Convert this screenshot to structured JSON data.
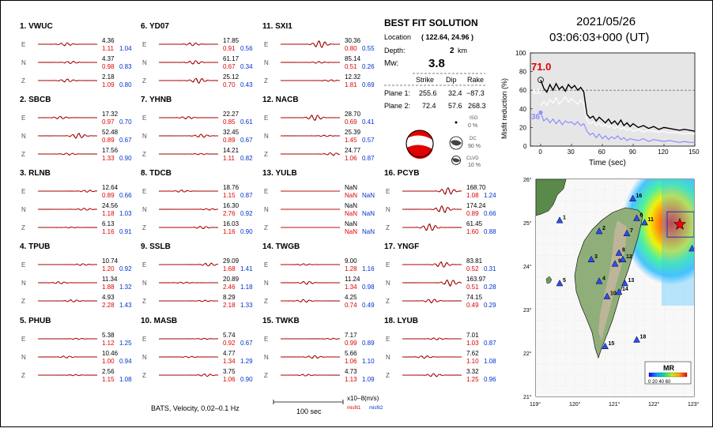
{
  "stations": [
    {
      "idx": "1.",
      "name": "VWUC",
      "rows": [
        {
          "amp": "4.36",
          "m1": "1.11",
          "m2": "1.04"
        },
        {
          "amp": "4.37",
          "m1": "0.98",
          "m2": "0.83"
        },
        {
          "amp": "2.18",
          "m1": "1.09",
          "m2": "0.80"
        }
      ]
    },
    {
      "idx": "2.",
      "name": "SBCB",
      "rows": [
        {
          "amp": "17.32",
          "m1": "0.97",
          "m2": "0.70"
        },
        {
          "amp": "52.48",
          "m1": "0.89",
          "m2": "0.67"
        },
        {
          "amp": "17.56",
          "m1": "1.33",
          "m2": "0.90"
        }
      ]
    },
    {
      "idx": "3.",
      "name": "RLNB",
      "rows": [
        {
          "amp": "12.64",
          "m1": "0.89",
          "m2": "0.66"
        },
        {
          "amp": "24.56",
          "m1": "1.18",
          "m2": "1.03"
        },
        {
          "amp": "6.13",
          "m1": "1.16",
          "m2": "0.91"
        }
      ]
    },
    {
      "idx": "4.",
      "name": "TPUB",
      "rows": [
        {
          "amp": "10.74",
          "m1": "1.20",
          "m2": "0.92"
        },
        {
          "amp": "11.34",
          "m1": "1.88",
          "m2": "1.32"
        },
        {
          "amp": "4.93",
          "m1": "2.28",
          "m2": "1.43"
        }
      ]
    },
    {
      "idx": "5.",
      "name": "PHUB",
      "rows": [
        {
          "amp": "5.38",
          "m1": "1.12",
          "m2": "1.25"
        },
        {
          "amp": "10.46",
          "m1": "1.00",
          "m2": "0.94"
        },
        {
          "amp": "2.56",
          "m1": "1.15",
          "m2": "1.08"
        }
      ]
    },
    {
      "idx": "6.",
      "name": "YD07",
      "rows": [
        {
          "amp": "17.85",
          "m1": "0.91",
          "m2": "0.56"
        },
        {
          "amp": "61.17",
          "m1": "0.67",
          "m2": "0.34"
        },
        {
          "amp": "25.12",
          "m1": "0.70",
          "m2": "0.43"
        }
      ]
    },
    {
      "idx": "7.",
      "name": "YHNB",
      "rows": [
        {
          "amp": "22.27",
          "m1": "0.85",
          "m2": "0.61"
        },
        {
          "amp": "32.45",
          "m1": "0.89",
          "m2": "0.67"
        },
        {
          "amp": "14.21",
          "m1": "1.11",
          "m2": "0.82"
        }
      ]
    },
    {
      "idx": "8.",
      "name": "TDCB",
      "rows": [
        {
          "amp": "18.76",
          "m1": "1.15",
          "m2": "0.87"
        },
        {
          "amp": "16.30",
          "m1": "2.76",
          "m2": "0.92"
        },
        {
          "amp": "16.03",
          "m1": "1.16",
          "m2": "0.90"
        }
      ]
    },
    {
      "idx": "9.",
      "name": "SSLB",
      "rows": [
        {
          "amp": "29.09",
          "m1": "1.68",
          "m2": "1.41"
        },
        {
          "amp": "20.89",
          "m1": "2.46",
          "m2": "1.18"
        },
        {
          "amp": "8.29",
          "m1": "2.18",
          "m2": "1.33"
        }
      ]
    },
    {
      "idx": "10.",
      "name": "MASB",
      "rows": [
        {
          "amp": "5.74",
          "m1": "0.92",
          "m2": "0.67"
        },
        {
          "amp": "4.77",
          "m1": "1.34",
          "m2": "1.29"
        },
        {
          "amp": "3.75",
          "m1": "1.06",
          "m2": "0.90"
        }
      ]
    },
    {
      "idx": "11.",
      "name": "SXI1",
      "rows": [
        {
          "amp": "30.36",
          "m1": "0.80",
          "m2": "0.55"
        },
        {
          "amp": "85.14",
          "m1": "0.51",
          "m2": "0.26"
        },
        {
          "amp": "12.32",
          "m1": "1.81",
          "m2": "0.69"
        }
      ]
    },
    {
      "idx": "12.",
      "name": "NACB",
      "rows": [
        {
          "amp": "28.70",
          "m1": "0.69",
          "m2": "0.41"
        },
        {
          "amp": "25.39",
          "m1": "1.45",
          "m2": "0.57"
        },
        {
          "amp": "24.77",
          "m1": "1.06",
          "m2": "0.87"
        }
      ]
    },
    {
      "idx": "13.",
      "name": "YULB",
      "rows": [
        {
          "amp": "NaN",
          "m1": "NaN",
          "m2": "NaN"
        },
        {
          "amp": "NaN",
          "m1": "NaN",
          "m2": "NaN"
        },
        {
          "amp": "NaN",
          "m1": "NaN",
          "m2": "NaN"
        }
      ]
    },
    {
      "idx": "14.",
      "name": "TWGB",
      "rows": [
        {
          "amp": "9.00",
          "m1": "1.28",
          "m2": "1.16"
        },
        {
          "amp": "11.24",
          "m1": "1.34",
          "m2": "0.98"
        },
        {
          "amp": "4.25",
          "m1": "0.74",
          "m2": "0.49"
        }
      ]
    },
    {
      "idx": "15.",
      "name": "TWKB",
      "rows": [
        {
          "amp": "7.17",
          "m1": "0.99",
          "m2": "0.89"
        },
        {
          "amp": "5.66",
          "m1": "1.06",
          "m2": "1.10"
        },
        {
          "amp": "4.73",
          "m1": "1.13",
          "m2": "1.09"
        }
      ]
    },
    {
      "idx": "16.",
      "name": "PCYB",
      "rows": [
        {
          "amp": "168.70",
          "m1": "1.08",
          "m2": "1.24"
        },
        {
          "amp": "174.24",
          "m1": "0.89",
          "m2": "0.66"
        },
        {
          "amp": "61.45",
          "m1": "1.60",
          "m2": "0.88"
        }
      ]
    },
    {
      "idx": "17.",
      "name": "YNGF",
      "rows": [
        {
          "amp": "83.81",
          "m1": "0.52",
          "m2": "0.31"
        },
        {
          "amp": "163.97",
          "m1": "0.51",
          "m2": "0.28"
        },
        {
          "amp": "74.15",
          "m1": "0.49",
          "m2": "0.29"
        }
      ]
    },
    {
      "idx": "18.",
      "name": "LYUB",
      "rows": [
        {
          "amp": "7.01",
          "m1": "1.03",
          "m2": "0.87"
        },
        {
          "amp": "7.62",
          "m1": "1.10",
          "m2": "1.08"
        },
        {
          "amp": "3.32",
          "m1": "1.25",
          "m2": "0.96"
        }
      ]
    }
  ],
  "components": [
    "E",
    "N",
    "Z"
  ],
  "footer": {
    "caption": "BATS, Velocity, 0.02–0.1 Hz",
    "scale_label": "100 sec",
    "units": "x10−8(m/s)",
    "misfit1_label": "misfit1",
    "misfit2_label": "misfit2"
  },
  "solution": {
    "title": "BEST FIT SOLUTION",
    "location_label": "Location",
    "location_value": "( 122.64, 24.96 )",
    "depth_label": "Depth:",
    "depth_value": "2",
    "depth_unit": "km",
    "mw_label": "Mw:",
    "mw_value": "3.8",
    "col_strike": "Strike",
    "col_dip": "Dip",
    "col_rake": "Rake",
    "plane1_label": "Plane 1:",
    "plane1": [
      "255.6",
      "32.4",
      "−87.3"
    ],
    "plane2_label": "Plane 2:",
    "plane2": [
      "72.4",
      "57.6",
      "268.3"
    ],
    "iso_label": "ISO",
    "iso_value": "0 %",
    "dc_label": "DC",
    "dc_value": "90 %",
    "clvd_label": "CLVD",
    "clvd_value": "10 %"
  },
  "event": {
    "date": "2021/05/26",
    "time": "03:06:03+000  (UT)"
  },
  "chart_data": {
    "type": "line",
    "ylabel": "Misfit reduction (%)",
    "xlabel": "Time (sec)",
    "xlim": [
      -10,
      150
    ],
    "ylim": [
      0,
      100
    ],
    "xticks": [
      "0",
      "30",
      "60",
      "90",
      "120",
      "150"
    ],
    "yticks": [
      "0",
      "20",
      "40",
      "60",
      "80",
      "100"
    ],
    "threshold": 60,
    "best_value": "71.0",
    "label_white": "43",
    "label_blue": "36",
    "series": [
      {
        "color": "#000000",
        "x": [
          0,
          3,
          6,
          9,
          12,
          15,
          18,
          21,
          24,
          27,
          30,
          33,
          36,
          39,
          42,
          45,
          48,
          51,
          54,
          57,
          60,
          63,
          66,
          69,
          72,
          75,
          78,
          81,
          84,
          87,
          90,
          95,
          100,
          105,
          110,
          115,
          120,
          125,
          130,
          135,
          140,
          145,
          150
        ],
        "y": [
          71,
          62,
          58,
          66,
          60,
          67,
          61,
          64,
          59,
          66,
          62,
          65,
          60,
          63,
          58,
          34,
          30,
          32,
          27,
          31,
          28,
          25,
          29,
          24,
          27,
          23,
          28,
          22,
          25,
          21,
          24,
          20,
          22,
          19,
          21,
          18,
          20,
          19,
          18,
          17,
          18,
          17,
          16
        ]
      },
      {
        "color": "#ffffff",
        "x": [
          0,
          3,
          6,
          9,
          12,
          15,
          18,
          21,
          24,
          27,
          30,
          33,
          36,
          39,
          42,
          45,
          48,
          51,
          54,
          57,
          60,
          63,
          66,
          69,
          72,
          75,
          78,
          81,
          84,
          87,
          90,
          95,
          100,
          105,
          110,
          115,
          120,
          125,
          130,
          135,
          140,
          145,
          150
        ],
        "y": [
          43,
          48,
          44,
          50,
          46,
          52,
          45,
          49,
          53,
          47,
          51,
          48,
          45,
          50,
          46,
          28,
          24,
          26,
          22,
          25,
          21,
          23,
          20,
          22,
          19,
          21,
          18,
          20,
          17,
          19,
          16,
          18,
          15,
          17,
          16,
          15,
          16,
          14,
          15,
          14,
          13,
          14,
          13
        ]
      },
      {
        "color": "#8c8cff",
        "x": [
          0,
          3,
          6,
          9,
          12,
          15,
          18,
          21,
          24,
          27,
          30,
          33,
          36,
          39,
          42,
          45,
          48,
          51,
          54,
          57,
          60,
          63,
          66,
          69,
          72,
          75,
          78,
          81,
          84,
          87,
          90,
          95,
          100,
          105,
          110,
          115,
          120,
          125,
          130,
          135,
          140,
          145,
          150
        ],
        "y": [
          36,
          27,
          30,
          25,
          29,
          24,
          28,
          23,
          27,
          25,
          26,
          23,
          26,
          22,
          24,
          16,
          12,
          14,
          9,
          13,
          8,
          11,
          7,
          10,
          8,
          11,
          7,
          9,
          6,
          8,
          7,
          6,
          8,
          5,
          7,
          6,
          5,
          6,
          5,
          4,
          5,
          4,
          4
        ]
      }
    ]
  },
  "map": {
    "lon_ticks": [
      "119°",
      "120°",
      "121°",
      "122°",
      "123°"
    ],
    "lat_ticks": [
      "21°",
      "22°",
      "23°",
      "24°",
      "25°",
      "26°"
    ],
    "legend_title": "MR",
    "legend_ticks": "0 20 40 60",
    "station_labels": [
      "1",
      "2",
      "3",
      "4",
      "5",
      "6",
      "7",
      "8",
      "9",
      "10",
      "11",
      "12",
      "13",
      "14",
      "15",
      "16",
      "17",
      "18"
    ],
    "epicenter": {
      "lon": 122.64,
      "lat": 24.96
    }
  }
}
